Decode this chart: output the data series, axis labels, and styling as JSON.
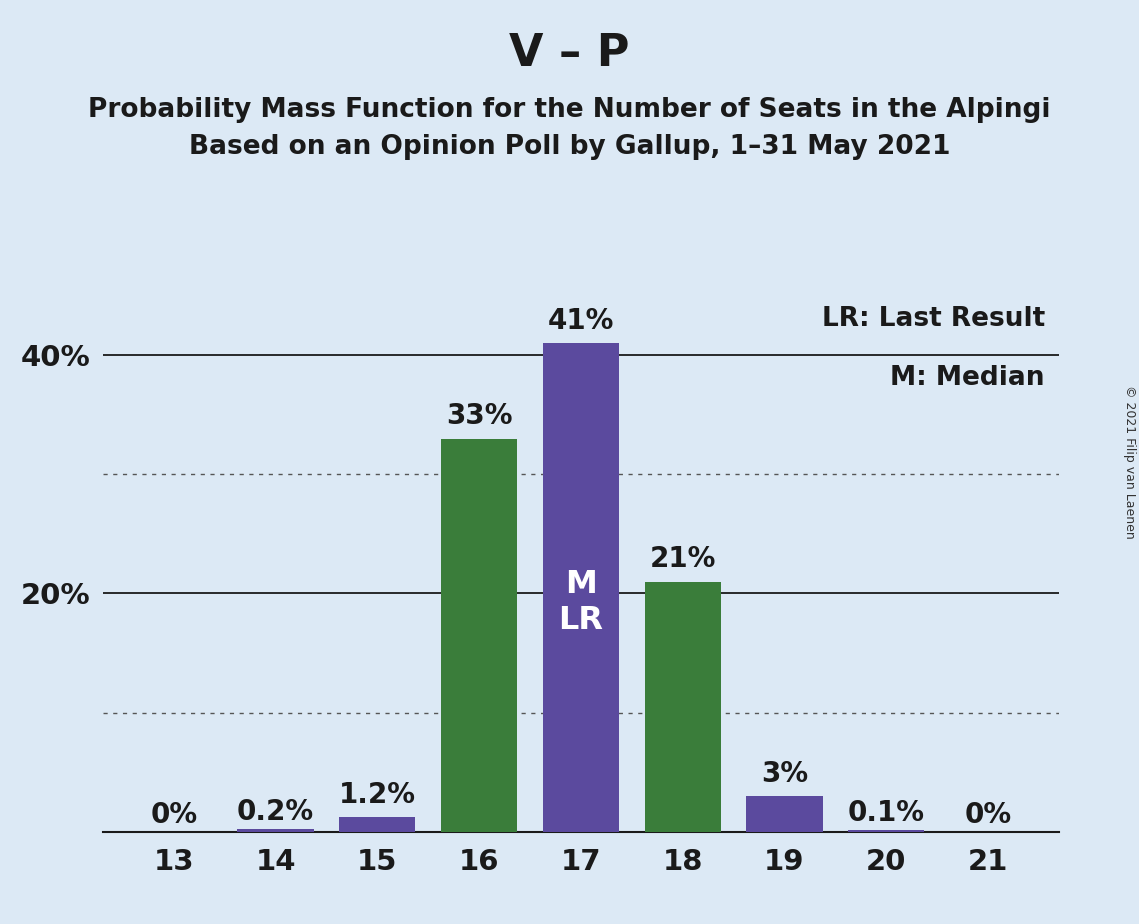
{
  "title_main": "V – P",
  "title_sub1": "Probability Mass Function for the Number of Seats in the Alpingi",
  "title_sub2": "Based on an Opinion Poll by Gallup, 1–31 May 2021",
  "copyright_text": "© 2021 Filip van Laenen",
  "seats": [
    13,
    14,
    15,
    16,
    17,
    18,
    19,
    20,
    21
  ],
  "probabilities": [
    0.0,
    0.2,
    1.2,
    33.0,
    41.0,
    21.0,
    3.0,
    0.1,
    0.0
  ],
  "bar_colors": [
    "#5b4a9e",
    "#5b4a9e",
    "#5b4a9e",
    "#3a7d3a",
    "#5b4a9e",
    "#3a7d3a",
    "#5b4a9e",
    "#5b4a9e",
    "#5b4a9e"
  ],
  "median_seat": 17,
  "last_result_seat": 17,
  "median_label": "M",
  "lr_label": "LR",
  "legend_lr": "LR: Last Result",
  "legend_m": "M: Median",
  "background_color": "#dce9f5",
  "ylim": [
    0,
    45
  ],
  "yticks": [
    0,
    10,
    20,
    30,
    40
  ],
  "dotted_gridlines": [
    10,
    30
  ],
  "solid_gridlines": [
    20,
    40
  ],
  "bar_width": 0.75,
  "title_fontsize": 32,
  "subtitle_fontsize": 19,
  "tick_fontsize": 21,
  "bar_label_fontsize": 20,
  "inner_label_fontsize": 23,
  "legend_fontsize": 19,
  "copyright_fontsize": 9,
  "xlim": [
    12.3,
    21.7
  ]
}
